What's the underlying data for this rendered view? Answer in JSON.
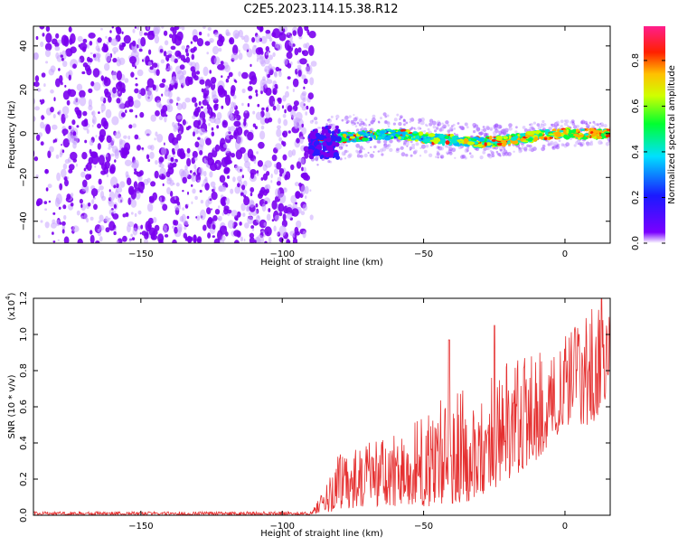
{
  "page": {
    "title": "C2E5.2023.114.15.38.R12"
  },
  "colors": {
    "snr_line": "#e53030",
    "axis": "#000000",
    "background": "#ffffff"
  },
  "chart_data": [
    {
      "type": "heatmap",
      "name": "spectrogram",
      "xlabel": "Height of straight line (km)",
      "ylabel": "Frequency (Hz)",
      "xlim": [
        -188,
        16
      ],
      "ylim": [
        -50,
        49
      ],
      "x_ticks": [
        -150,
        -100,
        -50,
        0
      ],
      "y_ticks": [
        -40,
        -20,
        0,
        20,
        40
      ],
      "noise_region_x": [
        -188,
        -90
      ],
      "signal_onset_x": -90,
      "signal_track": [
        {
          "x": -90,
          "freq": -4
        },
        {
          "x": -80,
          "freq": -2
        },
        {
          "x": -70,
          "freq": -1
        },
        {
          "x": -60,
          "freq": 0
        },
        {
          "x": -50,
          "freq": -2
        },
        {
          "x": -40,
          "freq": -3
        },
        {
          "x": -30,
          "freq": -4
        },
        {
          "x": -20,
          "freq": -3
        },
        {
          "x": -10,
          "freq": -1
        },
        {
          "x": 0,
          "freq": 0
        },
        {
          "x": 16,
          "freq": 0
        }
      ],
      "colorbar": {
        "label": "Normalized spectral amplitude",
        "range": [
          0.0,
          0.95
        ],
        "ticks": [
          "0.0",
          "0.2",
          "0.4",
          "0.6",
          "0.8"
        ],
        "tick_values": [
          0.0,
          0.2,
          0.4,
          0.6,
          0.8
        ]
      }
    },
    {
      "type": "line",
      "name": "snr",
      "xlabel": "Height of straight line (km)",
      "ylabel": "SNR (10 * v/v)",
      "y_multiplier": "(x10",
      "y_multiplier_exp": "4",
      "y_multiplier_close": ")",
      "xlim": [
        -188,
        16
      ],
      "ylim": [
        0.0,
        1.2
      ],
      "x_ticks": [
        -150,
        -100,
        -50,
        0
      ],
      "y_ticks": [
        "0.0",
        "0.2",
        "0.4",
        "0.6",
        "0.8",
        "1.0",
        "1.2"
      ],
      "y_tick_values": [
        0.0,
        0.2,
        0.4,
        0.6,
        0.8,
        1.0,
        1.2
      ],
      "envelope": [
        {
          "x": -188,
          "low": 0.0,
          "high": 0.02
        },
        {
          "x": -90,
          "low": 0.0,
          "high": 0.02
        },
        {
          "x": -85,
          "low": 0.01,
          "high": 0.15
        },
        {
          "x": -80,
          "low": 0.03,
          "high": 0.35
        },
        {
          "x": -70,
          "low": 0.05,
          "high": 0.4
        },
        {
          "x": -60,
          "low": 0.05,
          "high": 0.45
        },
        {
          "x": -50,
          "low": 0.05,
          "high": 0.55
        },
        {
          "x": -40,
          "low": 0.05,
          "high": 0.7
        },
        {
          "x": -30,
          "low": 0.1,
          "high": 0.75
        },
        {
          "x": -20,
          "low": 0.2,
          "high": 0.85
        },
        {
          "x": -10,
          "low": 0.3,
          "high": 0.9
        },
        {
          "x": 0,
          "low": 0.5,
          "high": 1.0
        },
        {
          "x": 10,
          "low": 0.5,
          "high": 1.15
        },
        {
          "x": 16,
          "low": 0.7,
          "high": 1.15
        }
      ],
      "peaks": [
        {
          "x": -41,
          "y": 0.97
        },
        {
          "x": -25,
          "y": 1.05
        },
        {
          "x": 5,
          "y": 1.0
        },
        {
          "x": 13,
          "y": 1.2
        }
      ]
    }
  ]
}
